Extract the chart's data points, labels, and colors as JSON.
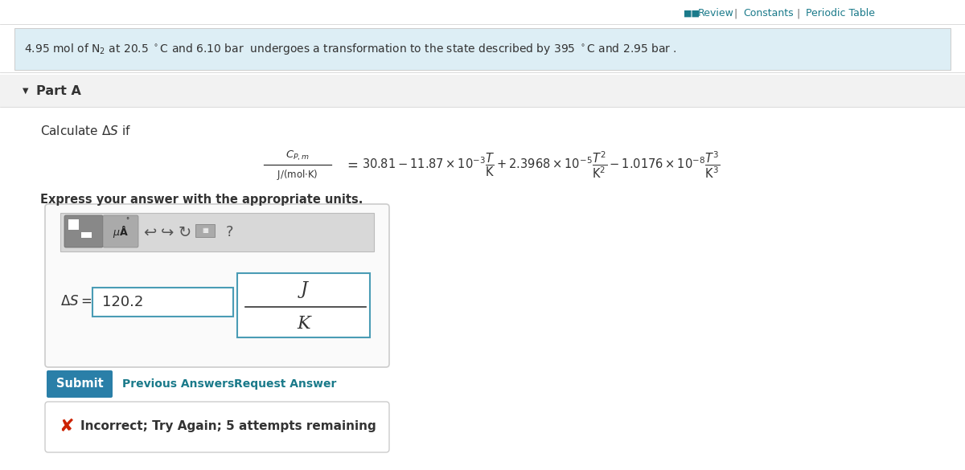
{
  "bg_color": "#ffffff",
  "banner_bg": "#ddeef5",
  "teal_color": "#1a7a8a",
  "gray_text": "#666666",
  "dark_text": "#333333",
  "light_gray": "#cccccc",
  "part_a_bg": "#f2f2f2",
  "input_border": "#4a9cb5",
  "submit_bg": "#2a7fa8",
  "submit_text": "#ffffff",
  "error_red": "#cc2200",
  "toolbar_bg": "#d8d8d8",
  "toolbar_btn1_bg": "#888888",
  "toolbar_btn2_bg": "#aaaaaa",
  "answer_value": "120.2",
  "unit_numerator": "J",
  "unit_denominator": "K",
  "submit_label": "Submit",
  "prev_answers": "Previous Answers",
  "request_answer": "Request Answer",
  "incorrect_text": "Incorrect; Try Again; 5 attempts remaining",
  "review_icon": "■■",
  "part_label": "Part A"
}
